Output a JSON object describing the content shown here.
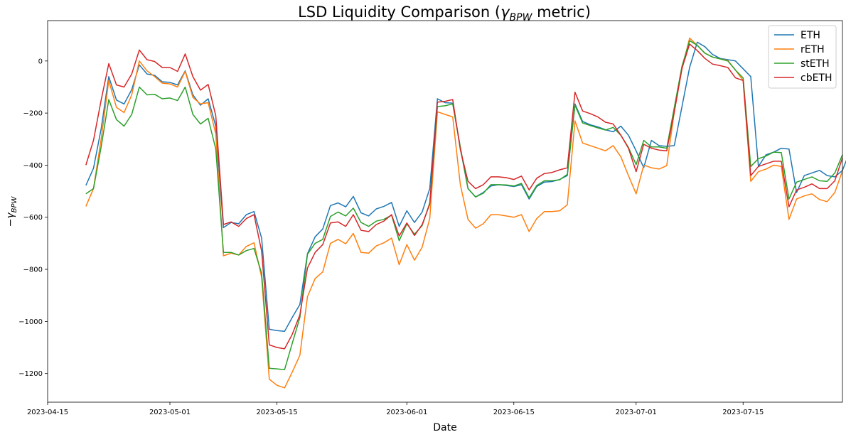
{
  "chart_data": {
    "type": "line",
    "title_parts": {
      "pre": "LSD Liquidity Comparison (",
      "sym": "γ",
      "sub": "BPW",
      "post": " metric)"
    },
    "xlabel": "Date",
    "ylabel_parts": {
      "pre": "−γ",
      "sub": "BPW"
    },
    "xlim": [
      "2023-04-15",
      "2023-07-28"
    ],
    "ylim": [
      -1310,
      155
    ],
    "x_ticks": [
      "2023-04-15",
      "2023-05-01",
      "2023-05-15",
      "2023-06-01",
      "2023-06-15",
      "2023-07-01",
      "2023-07-15"
    ],
    "y_ticks": [
      0,
      -200,
      -400,
      -600,
      -800,
      -1000,
      -1200
    ],
    "y_tick_labels": [
      "0",
      "−200",
      "−400",
      "−600",
      "−800",
      "−1000",
      "−1200"
    ],
    "legend_position": "top-right",
    "grid": false,
    "start_date": "2023-04-20",
    "series": [
      {
        "name": "ETH",
        "color": "#1f77b4",
        "values": [
          -478,
          -412,
          -260,
          -60,
          -150,
          -165,
          -110,
          -15,
          -50,
          -55,
          -80,
          -82,
          -92,
          -38,
          -130,
          -170,
          -145,
          -250,
          -640,
          -620,
          -625,
          -590,
          -578,
          -680,
          -1030,
          -1035,
          -1038,
          -985,
          -935,
          -740,
          -675,
          -645,
          -555,
          -545,
          -560,
          -520,
          -583,
          -595,
          -568,
          -558,
          -543,
          -635,
          -575,
          -620,
          -580,
          -490,
          -145,
          -160,
          -162,
          -335,
          -490,
          -522,
          -505,
          -480,
          -475,
          -478,
          -482,
          -475,
          -530,
          -482,
          -465,
          -463,
          -455,
          -440,
          -165,
          -232,
          -245,
          -253,
          -264,
          -272,
          -250,
          -285,
          -345,
          -410,
          -305,
          -325,
          -328,
          -325,
          -175,
          -25,
          72,
          55,
          25,
          10,
          5,
          0,
          -30,
          -60,
          -405,
          -360,
          -350,
          -335,
          -338,
          -505,
          -440,
          -430,
          -420,
          -440,
          -445,
          -420,
          -345
        ]
      },
      {
        "name": "rETH",
        "color": "#ff7f0e",
        "values": [
          -558,
          -490,
          -300,
          -75,
          -178,
          -198,
          -130,
          0,
          -38,
          -60,
          -85,
          -88,
          -100,
          -40,
          -140,
          -165,
          -160,
          -280,
          -748,
          -738,
          -745,
          -712,
          -698,
          -830,
          -1222,
          -1245,
          -1255,
          -1195,
          -1130,
          -905,
          -835,
          -810,
          -700,
          -685,
          -702,
          -662,
          -735,
          -738,
          -710,
          -698,
          -680,
          -782,
          -705,
          -765,
          -715,
          -605,
          -195,
          -205,
          -215,
          -475,
          -608,
          -642,
          -625,
          -590,
          -590,
          -595,
          -600,
          -590,
          -655,
          -605,
          -578,
          -578,
          -575,
          -552,
          -230,
          -315,
          -325,
          -335,
          -345,
          -325,
          -368,
          -440,
          -510,
          -400,
          -410,
          -415,
          -402,
          -195,
          -30,
          88,
          60,
          30,
          15,
          8,
          2,
          -35,
          -75,
          -462,
          -425,
          -415,
          -400,
          -405,
          -608,
          -530,
          -518,
          -510,
          -532,
          -540,
          -505,
          -422
        ]
      },
      {
        "name": "stETH",
        "color": "#2ca02c",
        "values": [
          -510,
          -490,
          -330,
          -148,
          -225,
          -250,
          -205,
          -100,
          -130,
          -128,
          -145,
          -142,
          -152,
          -100,
          -205,
          -242,
          -220,
          -338,
          -735,
          -735,
          -745,
          -728,
          -720,
          -815,
          -1180,
          -1182,
          -1185,
          -1085,
          -985,
          -742,
          -700,
          -685,
          -597,
          -580,
          -595,
          -565,
          -620,
          -635,
          -615,
          -608,
          -592,
          -690,
          -625,
          -665,
          -632,
          -545,
          -175,
          -172,
          -165,
          -330,
          -490,
          -522,
          -508,
          -475,
          -475,
          -476,
          -480,
          -470,
          -525,
          -478,
          -460,
          -460,
          -456,
          -435,
          -170,
          -238,
          -248,
          -257,
          -265,
          -255,
          -285,
          -332,
          -398,
          -305,
          -330,
          -330,
          -335,
          -178,
          -20,
          78,
          60,
          30,
          15,
          8,
          0,
          -35,
          -65,
          -405,
          -375,
          -365,
          -350,
          -352,
          -530,
          -465,
          -455,
          -445,
          -460,
          -462,
          -430,
          -360
        ]
      },
      {
        "name": "cbETH",
        "color": "#d62728",
        "values": [
          -400,
          -305,
          -150,
          -10,
          -92,
          -100,
          -50,
          42,
          5,
          -2,
          -25,
          -25,
          -40,
          27,
          -60,
          -112,
          -90,
          -210,
          -628,
          -618,
          -635,
          -605,
          -590,
          -730,
          -1090,
          -1100,
          -1105,
          -1050,
          -975,
          -795,
          -735,
          -705,
          -622,
          -618,
          -635,
          -590,
          -650,
          -655,
          -628,
          -615,
          -590,
          -672,
          -622,
          -670,
          -628,
          -550,
          -158,
          -155,
          -148,
          -340,
          -462,
          -490,
          -475,
          -445,
          -445,
          -448,
          -455,
          -442,
          -495,
          -450,
          -432,
          -428,
          -418,
          -410,
          -120,
          -192,
          -202,
          -215,
          -235,
          -242,
          -285,
          -335,
          -425,
          -320,
          -335,
          -342,
          -345,
          -195,
          -28,
          65,
          40,
          10,
          -12,
          -18,
          -25,
          -65,
          -75,
          -440,
          -405,
          -395,
          -385,
          -385,
          -560,
          -495,
          -485,
          -472,
          -490,
          -490,
          -460,
          -372
        ]
      }
    ]
  }
}
